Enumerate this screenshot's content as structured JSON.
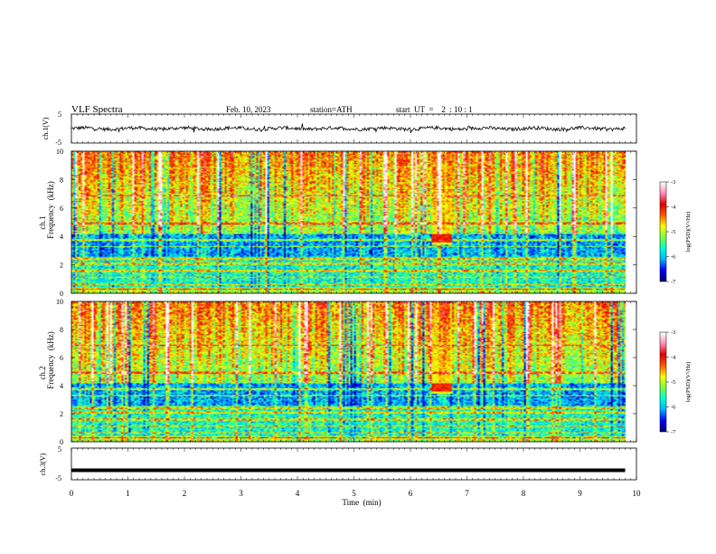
{
  "header": {
    "title": "VLF  Spectra",
    "date": "Feb. 10, 2023",
    "station": "station=ATH",
    "start": "start  UT  =    2  : 10 : 1"
  },
  "colors": {
    "background": "#ffffff",
    "axis": "#000000",
    "trace": "#000000",
    "colormap": [
      "#00007a",
      "#0000ff",
      "#00b4ff",
      "#00ffd2",
      "#7aff3c",
      "#ffff00",
      "#ff5a00",
      "#e00000",
      "#ff8cb4",
      "#ffffff"
    ]
  },
  "chart_data": [
    {
      "type": "line",
      "name": "waveform-ch1",
      "ylabel": "ch.1(V)",
      "y_ticks": [
        "5",
        "-5"
      ],
      "ylim": [
        -5,
        5
      ],
      "xlim": [
        0,
        10
      ],
      "data_extent_min": 9.8,
      "baseline_v": 0.0,
      "amplitude_v": 1.2
    },
    {
      "type": "heatmap",
      "name": "spectrogram-ch1",
      "ylabel_channel": "ch.1",
      "ylabel": "Frequency  (kHz)",
      "y_ticks": [
        "0",
        "2",
        "4",
        "6",
        "8",
        "10"
      ],
      "ylim_khz": [
        0,
        10
      ],
      "xlim_min": [
        0,
        10
      ],
      "data_extent_min": 9.8,
      "colorbar_label": "log(PSD)(V²/Hz)",
      "colorbar_ticks": [
        "-3",
        "-4",
        "-5",
        "-6",
        "-7"
      ],
      "colorbar_range": [
        -7,
        -3
      ],
      "burst": {
        "t_min": 6.55,
        "f_khz": 3.9
      }
    },
    {
      "type": "heatmap",
      "name": "spectrogram-ch2",
      "ylabel_channel": "ch.2",
      "ylabel": "Frequency  (kHz)",
      "y_ticks": [
        "0",
        "2",
        "4",
        "6",
        "8",
        "10"
      ],
      "ylim_khz": [
        0,
        10
      ],
      "xlim_min": [
        0,
        10
      ],
      "data_extent_min": 9.8,
      "colorbar_label": "log(PSD)(V²/Hz)",
      "colorbar_ticks": [
        "-3",
        "-4",
        "-5",
        "-6",
        "-7"
      ],
      "colorbar_range": [
        -7,
        -3
      ],
      "burst": {
        "t_min": 6.55,
        "f_khz": 3.9
      }
    },
    {
      "type": "line",
      "name": "waveform-ch3",
      "ylabel": "ch.3(V)",
      "y_ticks": [
        "5",
        "-5"
      ],
      "ylim": [
        -5,
        5
      ],
      "xlim": [
        0,
        10
      ],
      "data_extent_min": 9.8,
      "baseline_v": -2.0,
      "amplitude_v": 0.0
    }
  ],
  "x_axis": {
    "label": "Time  (min)",
    "ticks": [
      "0",
      "1",
      "2",
      "3",
      "4",
      "5",
      "6",
      "7",
      "8",
      "9",
      "10"
    ]
  }
}
